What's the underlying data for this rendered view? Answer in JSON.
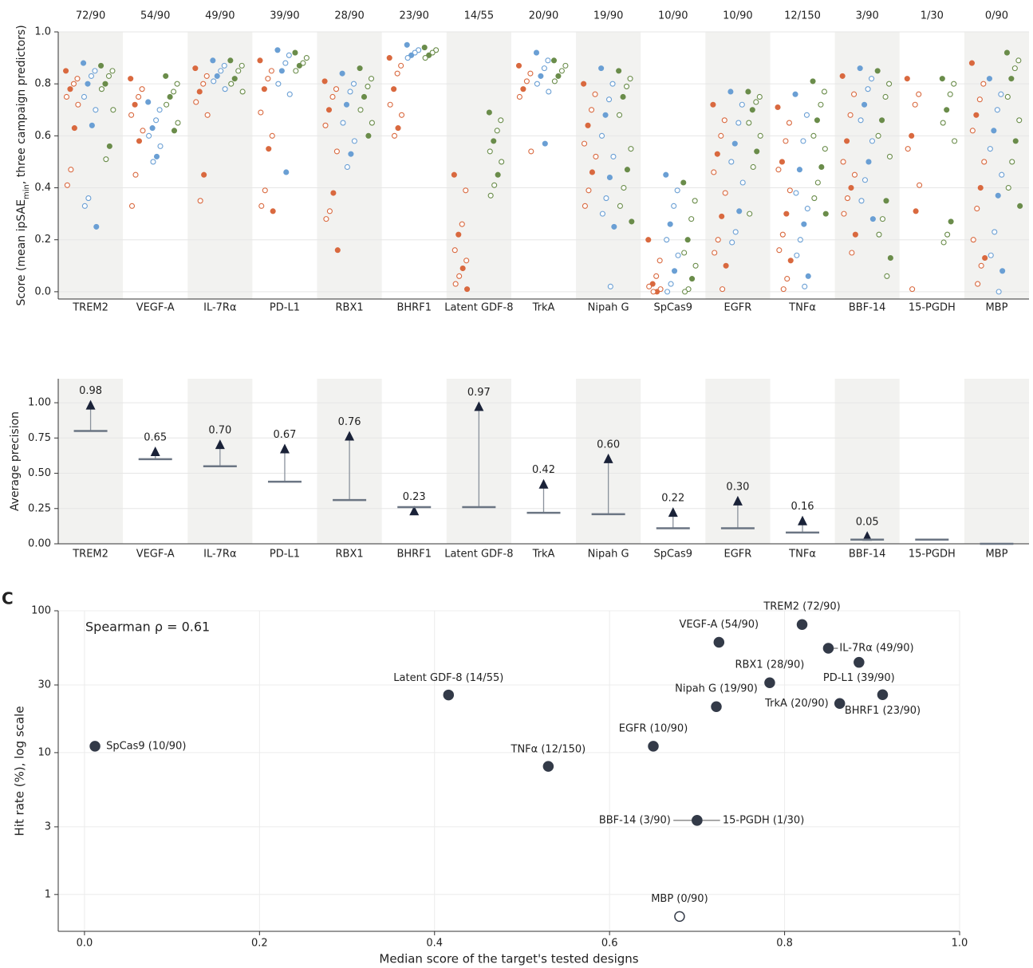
{
  "chart_data": [
    {
      "type": "strip",
      "y_label": [
        "Score (mean ipSAE",
        "min",
        ", three campaign predictors)"
      ],
      "categories": [
        "TREM2",
        "VEGF-A",
        "IL-7Rα",
        "PD-L1",
        "RBX1",
        "BHRF1",
        "Latent GDF-8",
        "TrkA",
        "Nipah G",
        "SpCas9",
        "EGFR",
        "TNFα",
        "BBF-14",
        "15-PGDH",
        "MBP"
      ],
      "hit_labels": [
        "72/90",
        "54/90",
        "49/90",
        "39/90",
        "28/90",
        "23/90",
        "14/55",
        "20/90",
        "19/90",
        "10/90",
        "10/90",
        "12/150",
        "3/90",
        "1/30",
        "0/90"
      ],
      "ylim": [
        -0.028,
        1.0
      ],
      "yticks": [
        {
          "value": 0,
          "label": "0.0"
        },
        {
          "value": 0.2,
          "label": "0.2"
        },
        {
          "value": 0.4,
          "label": "0.4"
        },
        {
          "value": 0.6,
          "label": "0.6"
        },
        {
          "value": 0.8,
          "label": "0.8"
        },
        {
          "value": 1.0,
          "label": "1.0"
        }
      ],
      "grid": true,
      "series": [
        {
          "color": "#d9693f",
          "values": [
            [
              0.85,
              0.82,
              0.8,
              0.78,
              0.75,
              0.72,
              0.63,
              0.47,
              0.41
            ],
            [
              0.82,
              0.78,
              0.75,
              0.72,
              0.68,
              0.62,
              0.58,
              0.45,
              0.33
            ],
            [
              0.86,
              0.83,
              0.8,
              0.77,
              0.73,
              0.68,
              0.45,
              0.35
            ],
            [
              0.89,
              0.85,
              0.82,
              0.78,
              0.69,
              0.6,
              0.55,
              0.39,
              0.33,
              0.31
            ],
            [
              0.81,
              0.78,
              0.75,
              0.7,
              0.64,
              0.54,
              0.38,
              0.31,
              0.28,
              0.16
            ],
            [
              0.9,
              0.87,
              0.84,
              0.78,
              0.72,
              0.68,
              0.63,
              0.6
            ],
            [
              0.45,
              0.39,
              0.26,
              0.22,
              0.16,
              0.12,
              0.09,
              0.06,
              0.03,
              0.01
            ],
            [
              0.87,
              0.84,
              0.81,
              0.78,
              0.75,
              0.54
            ],
            [
              0.8,
              0.76,
              0.7,
              0.64,
              0.57,
              0.52,
              0.46,
              0.39,
              0.33
            ],
            [
              0.2,
              0.12,
              0.06,
              0.03,
              0.02,
              0.01,
              0.0,
              0.0
            ],
            [
              0.72,
              0.66,
              0.6,
              0.53,
              0.46,
              0.38,
              0.29,
              0.2,
              0.15,
              0.1,
              0.01
            ],
            [
              0.71,
              0.65,
              0.58,
              0.5,
              0.47,
              0.39,
              0.3,
              0.22,
              0.16,
              0.12,
              0.05,
              0.01
            ],
            [
              0.83,
              0.76,
              0.68,
              0.58,
              0.5,
              0.45,
              0.4,
              0.36,
              0.3,
              0.22,
              0.15
            ],
            [
              0.82,
              0.76,
              0.72,
              0.6,
              0.55,
              0.41,
              0.31,
              0.01
            ],
            [
              0.88,
              0.8,
              0.74,
              0.68,
              0.62,
              0.5,
              0.4,
              0.32,
              0.2,
              0.13,
              0.1,
              0.03
            ]
          ]
        },
        {
          "color": "#6a9fd4",
          "values": [
            [
              0.88,
              0.85,
              0.83,
              0.8,
              0.75,
              0.7,
              0.64,
              0.36,
              0.33,
              0.25
            ],
            [
              0.73,
              0.7,
              0.66,
              0.63,
              0.6,
              0.56,
              0.52,
              0.5
            ],
            [
              0.89,
              0.87,
              0.85,
              0.83,
              0.81,
              0.78
            ],
            [
              0.93,
              0.91,
              0.88,
              0.85,
              0.8,
              0.76,
              0.46
            ],
            [
              0.84,
              0.8,
              0.77,
              0.72,
              0.65,
              0.58,
              0.53,
              0.48
            ],
            [
              0.95,
              0.93,
              0.92,
              0.91,
              0.9
            ],
            [],
            [
              0.92,
              0.89,
              0.86,
              0.83,
              0.8,
              0.77,
              0.57
            ],
            [
              0.86,
              0.8,
              0.74,
              0.68,
              0.6,
              0.52,
              0.44,
              0.36,
              0.3,
              0.25,
              0.02
            ],
            [
              0.45,
              0.39,
              0.33,
              0.26,
              0.2,
              0.14,
              0.08,
              0.03,
              0.0
            ],
            [
              0.77,
              0.72,
              0.65,
              0.57,
              0.5,
              0.42,
              0.31,
              0.23,
              0.19
            ],
            [
              0.76,
              0.68,
              0.58,
              0.47,
              0.38,
              0.32,
              0.26,
              0.2,
              0.14,
              0.06,
              0.02
            ],
            [
              0.86,
              0.82,
              0.78,
              0.72,
              0.66,
              0.58,
              0.5,
              0.43,
              0.35,
              0.28
            ],
            [],
            [
              0.82,
              0.76,
              0.7,
              0.62,
              0.55,
              0.45,
              0.37,
              0.23,
              0.14,
              0.08,
              0.0
            ]
          ]
        },
        {
          "color": "#6a8c4a",
          "values": [
            [
              0.87,
              0.85,
              0.83,
              0.8,
              0.78,
              0.7,
              0.56,
              0.51
            ],
            [
              0.83,
              0.8,
              0.77,
              0.75,
              0.72,
              0.65,
              0.62
            ],
            [
              0.89,
              0.87,
              0.85,
              0.82,
              0.8,
              0.77
            ],
            [
              0.92,
              0.9,
              0.88,
              0.87,
              0.85
            ],
            [
              0.86,
              0.82,
              0.79,
              0.75,
              0.7,
              0.65,
              0.6
            ],
            [
              0.94,
              0.93,
              0.92,
              0.91,
              0.9
            ],
            [
              0.69,
              0.66,
              0.62,
              0.58,
              0.54,
              0.5,
              0.45,
              0.41,
              0.37
            ],
            [
              0.89,
              0.87,
              0.85,
              0.83,
              0.81
            ],
            [
              0.85,
              0.82,
              0.79,
              0.75,
              0.68,
              0.55,
              0.47,
              0.4,
              0.33,
              0.27
            ],
            [
              0.42,
              0.35,
              0.28,
              0.2,
              0.15,
              0.1,
              0.05,
              0.01,
              0.0
            ],
            [
              0.77,
              0.75,
              0.73,
              0.7,
              0.65,
              0.6,
              0.54,
              0.48,
              0.3
            ],
            [
              0.81,
              0.77,
              0.72,
              0.66,
              0.6,
              0.55,
              0.48,
              0.42,
              0.36,
              0.3
            ],
            [
              0.85,
              0.8,
              0.75,
              0.66,
              0.6,
              0.52,
              0.35,
              0.28,
              0.22,
              0.13,
              0.06
            ],
            [
              0.82,
              0.8,
              0.76,
              0.7,
              0.65,
              0.58,
              0.27,
              0.22,
              0.19
            ],
            [
              0.92,
              0.89,
              0.86,
              0.82,
              0.75,
              0.66,
              0.58,
              0.5,
              0.4,
              0.33
            ]
          ]
        }
      ]
    },
    {
      "type": "marker",
      "y_label": "Average precision",
      "categories": [
        "TREM2",
        "VEGF-A",
        "IL-7Rα",
        "PD-L1",
        "RBX1",
        "BHRF1",
        "Latent GDF-8",
        "TrkA",
        "Nipah G",
        "SpCas9",
        "EGFR",
        "TNFα",
        "BBF-14",
        "15-PGDH",
        "MBP"
      ],
      "values": [
        0.98,
        0.65,
        0.7,
        0.67,
        0.76,
        0.23,
        0.97,
        0.42,
        0.6,
        0.22,
        0.3,
        0.16,
        0.05,
        null,
        null
      ],
      "value_labels": [
        "0.98",
        "0.65",
        "0.70",
        "0.67",
        "0.76",
        "0.23",
        "0.97",
        "0.42",
        "0.60",
        "0.22",
        "0.30",
        "0.16",
        "0.05",
        null,
        null
      ],
      "baseline": [
        0.8,
        0.6,
        0.55,
        0.44,
        0.31,
        0.26,
        0.26,
        0.22,
        0.21,
        0.11,
        0.11,
        0.08,
        0.03,
        0.03,
        0.0
      ],
      "color": "#1a2238",
      "baseline_color": "#6b7583",
      "ylim": [
        0,
        1.17
      ],
      "yticks": [
        {
          "value": 0,
          "label": "0.00"
        },
        {
          "value": 0.25,
          "label": "0.25"
        },
        {
          "value": 0.5,
          "label": "0.50"
        },
        {
          "value": 0.75,
          "label": "0.75"
        },
        {
          "value": 1.0,
          "label": "1.00"
        }
      ],
      "grid": true
    },
    {
      "type": "scatter",
      "panel_label": "C",
      "annotation": "Spearman ρ = 0.61",
      "x_label": "Median score of the target's tested designs",
      "y_label": "Hit rate (%), log scale",
      "log_y": true,
      "point_labels": [
        "TREM2 (72/90)",
        "VEGF-A (54/90)",
        "IL-7Rα (49/90)",
        "PD-L1 (39/90)",
        "RBX1 (28/90)",
        "BHRF1 (23/90)",
        "Latent GDF-8 (14/55)",
        "TrkA (20/90)",
        "Nipah G (19/90)",
        "SpCas9 (10/90)",
        "EGFR (10/90)",
        "TNFα (12/150)",
        "BBF-14 (3/90)",
        "15-PGDH (1/30)",
        "MBP (0/90)"
      ],
      "x": [
        0.82,
        0.725,
        0.85,
        0.885,
        0.783,
        0.912,
        0.416,
        0.863,
        0.722,
        0.012,
        0.65,
        0.53,
        0.7,
        0.7,
        0.68
      ],
      "values": [
        80,
        60,
        54.4,
        43.3,
        31.1,
        25.6,
        25.5,
        22.2,
        21.1,
        11.1,
        11.1,
        8,
        3.33,
        3.33,
        0.7
      ],
      "marker_filled": [
        true,
        true,
        true,
        true,
        true,
        true,
        true,
        true,
        true,
        true,
        true,
        true,
        true,
        true,
        false
      ],
      "color": "#333a48",
      "xlim": [
        -0.03,
        1.0
      ],
      "xticks": [
        {
          "value": 0,
          "label": "0.0"
        },
        {
          "value": 0.2,
          "label": "0.2"
        },
        {
          "value": 0.4,
          "label": "0.4"
        },
        {
          "value": 0.6,
          "label": "0.6"
        },
        {
          "value": 0.8,
          "label": "0.8"
        },
        {
          "value": 1.0,
          "label": "1.0"
        }
      ],
      "ylim": [
        0.55,
        100
      ],
      "yticks": [
        1,
        3,
        10,
        30,
        100
      ],
      "grid": true
    }
  ]
}
